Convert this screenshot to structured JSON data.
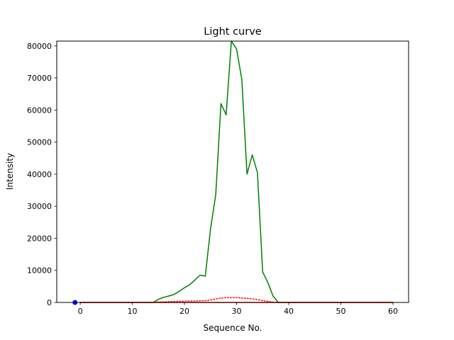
{
  "chart_data": {
    "type": "line",
    "title": "Light curve",
    "xlabel": "Sequence No.",
    "ylabel": "Intensity",
    "xlim": [
      -4.5,
      63
    ],
    "ylim": [
      0,
      81500
    ],
    "x_ticks": [
      0,
      10,
      20,
      30,
      40,
      50,
      60
    ],
    "x_tick_labels": [
      "0",
      "10",
      "20",
      "30",
      "40",
      "50",
      "60"
    ],
    "y_ticks": [
      0,
      10000,
      20000,
      30000,
      40000,
      50000,
      60000,
      70000,
      80000
    ],
    "y_tick_labels": [
      "0",
      "10000",
      "20000",
      "30000",
      "40000",
      "50000",
      "60000",
      "70000",
      "80000"
    ],
    "grid": false,
    "series": [
      {
        "style": "solid",
        "color": "#008000",
        "x": [
          0,
          1,
          2,
          3,
          4,
          5,
          6,
          7,
          8,
          9,
          10,
          11,
          12,
          13,
          14,
          15,
          16,
          17,
          18,
          19,
          20,
          21,
          22,
          23,
          24,
          25,
          26,
          27,
          28,
          29,
          30,
          31,
          32,
          33,
          34,
          35,
          36,
          37,
          38,
          39,
          40,
          41,
          42,
          43,
          44,
          45,
          46,
          47,
          48,
          49,
          50,
          51,
          52,
          53,
          54,
          55,
          56,
          57,
          58,
          59,
          60
        ],
        "y": [
          0,
          0,
          0,
          0,
          0,
          0,
          0,
          0,
          0,
          0,
          0,
          0,
          0,
          0,
          0,
          1000,
          1600,
          2000,
          2500,
          3500,
          4600,
          5500,
          7000,
          8500,
          8200,
          23000,
          33500,
          62000,
          58500,
          81500,
          79000,
          69500,
          40000,
          46000,
          40500,
          9500,
          6200,
          2000,
          0,
          0,
          0,
          0,
          0,
          0,
          0,
          0,
          0,
          0,
          0,
          0,
          0,
          0,
          0,
          0,
          0,
          0,
          0,
          0,
          0,
          0,
          0
        ]
      },
      {
        "style": "dotted",
        "color": "#ff0000",
        "x": [
          0,
          1,
          2,
          3,
          4,
          5,
          6,
          7,
          8,
          9,
          10,
          11,
          12,
          13,
          14,
          15,
          16,
          17,
          18,
          19,
          20,
          21,
          22,
          23,
          24,
          25,
          26,
          27,
          28,
          29,
          30,
          31,
          32,
          33,
          34,
          35,
          36,
          37,
          38,
          39,
          40,
          41,
          42,
          43,
          44,
          45,
          46,
          47,
          48,
          49,
          50,
          51,
          52,
          53,
          54,
          55,
          56,
          57,
          58,
          59,
          60
        ],
        "y": [
          0,
          0,
          0,
          0,
          0,
          0,
          0,
          0,
          0,
          0,
          0,
          0,
          0,
          0,
          0,
          150,
          200,
          250,
          300,
          350,
          400,
          450,
          450,
          500,
          550,
          800,
          1100,
          1400,
          1500,
          1500,
          1500,
          1400,
          1300,
          1100,
          900,
          600,
          300,
          100,
          0,
          0,
          0,
          0,
          0,
          0,
          0,
          0,
          0,
          0,
          0,
          0,
          0,
          0,
          0,
          0,
          0,
          0,
          0,
          0,
          0,
          0,
          0
        ]
      },
      {
        "style": "solid",
        "color": "#ff0000",
        "x": [
          0,
          60
        ],
        "y": [
          0,
          0
        ]
      }
    ],
    "markers": [
      {
        "x": -1,
        "y": 0,
        "color": "#0000ff"
      }
    ]
  }
}
